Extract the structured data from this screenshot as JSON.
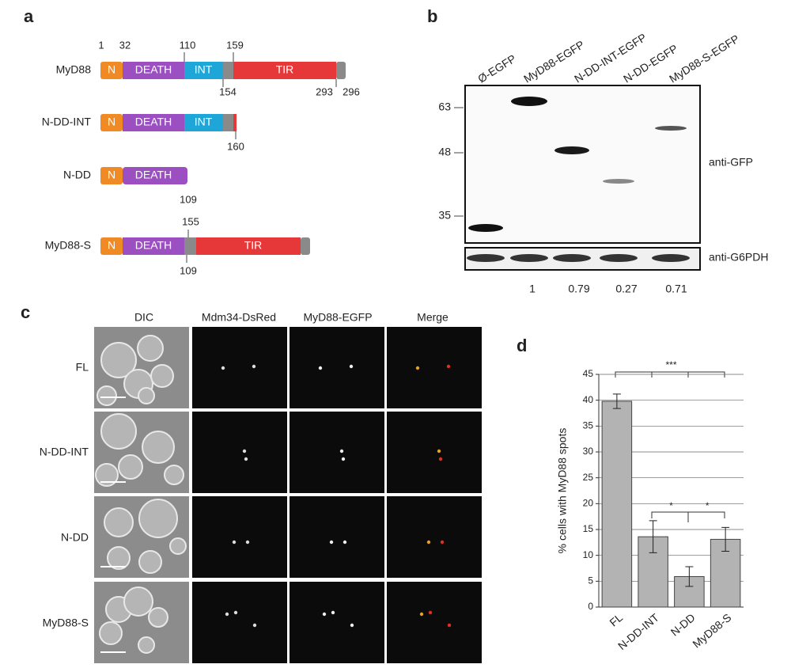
{
  "panel_labels": [
    "a",
    "b",
    "c",
    "d"
  ],
  "panel_a": {
    "constructs": [
      {
        "name": "MyD88",
        "domains": [
          "N",
          "DEATH",
          "INT",
          "TIR"
        ],
        "positions": [
          1,
          32,
          110,
          159,
          154,
          293,
          296
        ]
      },
      {
        "name": "N-DD-INT",
        "domains": [
          "N",
          "DEATH",
          "INT"
        ],
        "positions": [
          160
        ]
      },
      {
        "name": "N-DD",
        "domains": [
          "N",
          "DEATH"
        ],
        "positions": [
          109
        ]
      },
      {
        "name": "MyD88-S",
        "domains": [
          "N",
          "DEATH",
          "TIR"
        ],
        "positions": [
          155,
          109
        ]
      }
    ]
  },
  "panel_b": {
    "lanes": [
      "Ø-EGFP",
      "MyD88-EGFP",
      "N-DD-INT-EGFP",
      "N-DD-EGFP",
      "MyD88-S-EGFP"
    ],
    "markers": [
      63,
      48,
      35
    ],
    "antibodies": [
      "anti-GFP",
      "anti-G6PDH"
    ],
    "quantification": [
      1,
      0.79,
      0.27,
      0.71
    ]
  },
  "panel_c": {
    "columns": [
      "DIC",
      "Mdm34-DsRed",
      "MyD88-EGFP",
      "Merge"
    ],
    "rows": [
      "FL",
      "N-DD-INT",
      "N-DD",
      "MyD88-S"
    ]
  },
  "chart_data": {
    "type": "bar",
    "y_label": "% cells with MyD88 spots",
    "categories": [
      "FL",
      "N-DD-INT",
      "N-DD",
      "MyD88-S"
    ],
    "values": [
      39.8,
      13.6,
      5.9,
      13.1
    ],
    "errors": [
      1.4,
      3.1,
      1.9,
      2.3
    ],
    "color": "#b3b3b3",
    "ylim": [
      0,
      45
    ],
    "yticks": [
      0,
      5,
      10,
      15,
      20,
      25,
      30,
      35,
      40,
      45
    ],
    "grid": true,
    "annotations": [
      "***",
      "*",
      "*"
    ]
  }
}
